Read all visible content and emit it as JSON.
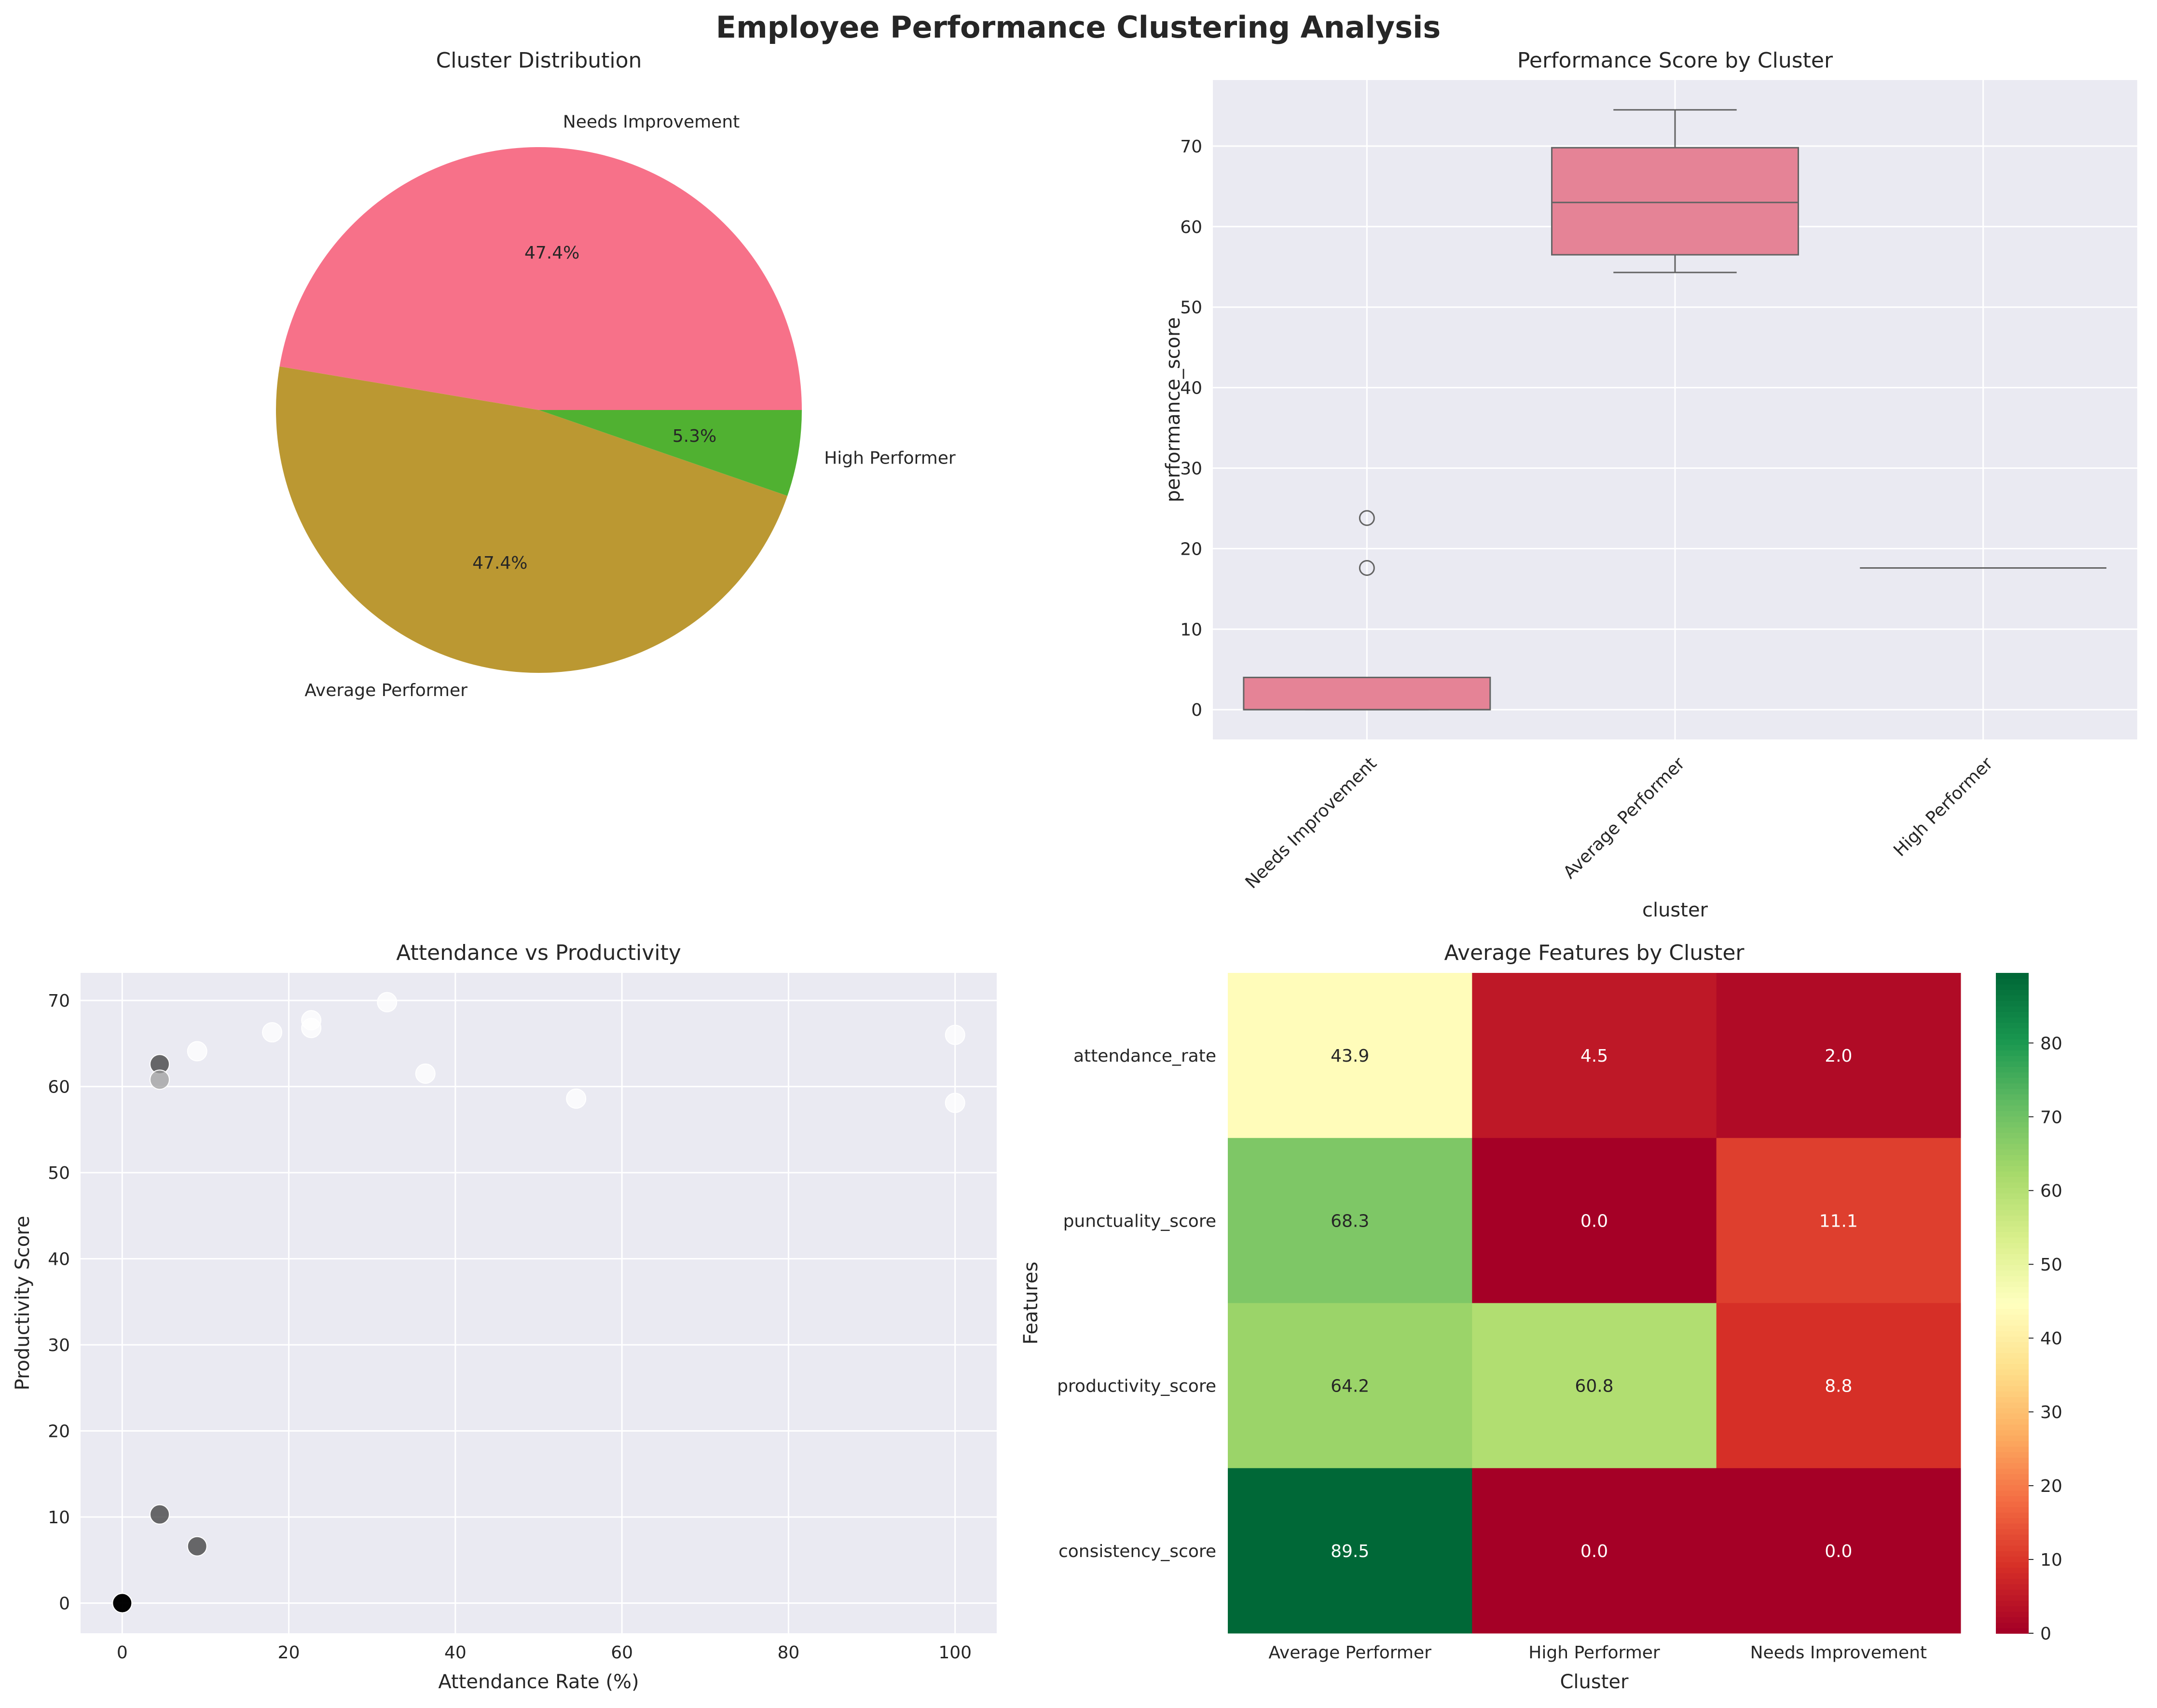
{
  "suptitle": "Employee Performance Clustering Analysis",
  "colors": {
    "panel_bg": "#eaeaf2",
    "grid": "#ffffff",
    "pink": "#f77189",
    "olive": "#bb9832",
    "green": "#50b131",
    "box_fill": "#e58396",
    "box_edge": "#636363",
    "text": "#262626"
  },
  "chart_data": [
    {
      "type": "pie",
      "title": "Cluster Distribution",
      "labels": [
        "Needs Improvement",
        "Average Performer",
        "High Performer"
      ],
      "values": [
        47.4,
        47.4,
        5.3
      ],
      "pct_labels": [
        "47.4%",
        "47.4%",
        "5.3%"
      ],
      "colors": [
        "#f77189",
        "#bb9832",
        "#50b131"
      ]
    },
    {
      "type": "box",
      "title": "Performance Score by Cluster",
      "xlabel": "cluster",
      "ylabel": "performance_score",
      "categories": [
        "Needs Improvement",
        "Average Performer",
        "High Performer"
      ],
      "boxes": [
        {
          "whislo": 0,
          "q1": 0,
          "med": 0,
          "q3": 4,
          "whishi": 4,
          "fliers": [
            23.8,
            17.6
          ]
        },
        {
          "whislo": 54.3,
          "q1": 56.5,
          "med": 63,
          "q3": 69.8,
          "whishi": 74.5,
          "fliers": []
        },
        {
          "whislo": 17.6,
          "q1": 17.6,
          "med": 17.6,
          "q3": 17.6,
          "whishi": 17.6,
          "fliers": []
        }
      ],
      "ylim": [
        -3.7,
        78.2
      ],
      "yticks": [
        0,
        10,
        20,
        30,
        40,
        50,
        60,
        70
      ],
      "grid": true
    },
    {
      "type": "scatter",
      "title": "Attendance vs Productivity",
      "xlabel": "Attendance Rate (%)",
      "ylabel": "Productivity Score",
      "xlim": [
        -5,
        105
      ],
      "ylim": [
        -3.5,
        73.2
      ],
      "xticks": [
        0,
        20,
        40,
        60,
        80,
        100
      ],
      "yticks": [
        0,
        10,
        20,
        30,
        40,
        50,
        60,
        70
      ],
      "points": [
        {
          "x": 0,
          "y": 0,
          "color": "#000000"
        },
        {
          "x": 0,
          "y": 0,
          "color": "#000000"
        },
        {
          "x": 0,
          "y": 0,
          "color": "#000000"
        },
        {
          "x": 4.5,
          "y": 10.3,
          "color": "#3a3a3a"
        },
        {
          "x": 9,
          "y": 6.6,
          "color": "#3a3a3a"
        },
        {
          "x": 4.5,
          "y": 62.6,
          "color": "#3a3a3a"
        },
        {
          "x": 4.5,
          "y": 60.8,
          "color": "#9e9e9e"
        },
        {
          "x": 9,
          "y": 64.1,
          "color": "#ffffff"
        },
        {
          "x": 18,
          "y": 66.3,
          "color": "#ffffff"
        },
        {
          "x": 22.7,
          "y": 67.7,
          "color": "#ffffff"
        },
        {
          "x": 22.7,
          "y": 66.8,
          "color": "#ffffff"
        },
        {
          "x": 31.8,
          "y": 69.8,
          "color": "#ffffff"
        },
        {
          "x": 36.4,
          "y": 61.5,
          "color": "#ffffff"
        },
        {
          "x": 54.5,
          "y": 58.6,
          "color": "#ffffff"
        },
        {
          "x": 100,
          "y": 66,
          "color": "#ffffff"
        },
        {
          "x": 100,
          "y": 58.1,
          "color": "#ffffff"
        }
      ],
      "grid": true
    },
    {
      "type": "heatmap",
      "title": "Average Features by Cluster",
      "xlabel": "Cluster",
      "ylabel": "Features",
      "columns": [
        "Average Performer",
        "High Performer",
        "Needs Improvement"
      ],
      "rows": [
        "attendance_rate",
        "punctuality_score",
        "productivity_score",
        "consistency_score"
      ],
      "values": [
        [
          43.9,
          4.5,
          2.0
        ],
        [
          68.3,
          0.0,
          11.1
        ],
        [
          64.2,
          60.8,
          8.8
        ],
        [
          89.5,
          0.0,
          0.0
        ]
      ],
      "value_labels": [
        [
          "43.9",
          "4.5",
          "2.0"
        ],
        [
          "68.3",
          "0.0",
          "11.1"
        ],
        [
          "64.2",
          "60.8",
          "8.8"
        ],
        [
          "89.5",
          "0.0",
          "0.0"
        ]
      ],
      "colormap": "RdYlGn",
      "vmin": 0,
      "vmax": 89.5,
      "colorbar_ticks": [
        0,
        10,
        20,
        30,
        40,
        50,
        60,
        70,
        80
      ]
    }
  ]
}
